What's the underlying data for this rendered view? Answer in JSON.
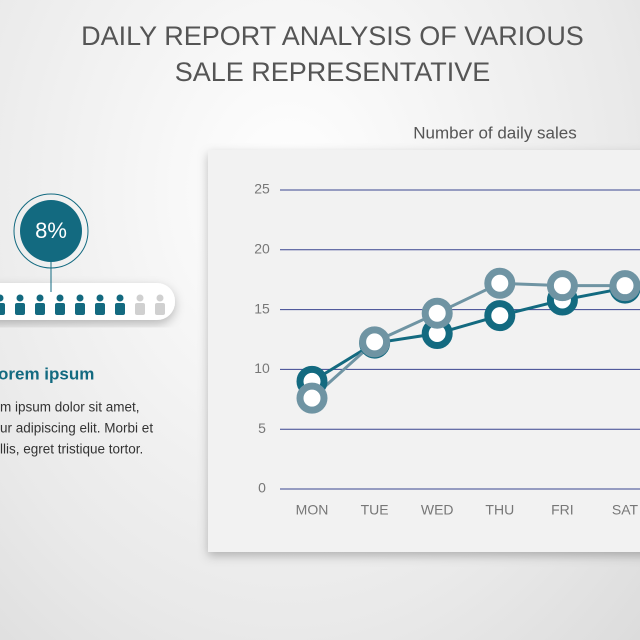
{
  "title": "DAILY REPORT ANALYSIS OF VARIOUS SALE REPRESENTATIVE",
  "infographic": {
    "percent": "8%",
    "heading": "orem ipsum",
    "body": [
      "m ipsum dolor sit amet,",
      "ur adipiscing elit. Morbi et",
      "llis, egret tristique tortor."
    ]
  },
  "chart_data": {
    "type": "line",
    "title": "Number of daily sales",
    "categories": [
      "MON",
      "TUE",
      "WED",
      "THU",
      "FRI",
      "SAT"
    ],
    "series": [
      {
        "color": "#136a80",
        "values": [
          9,
          12.2,
          13,
          14.5,
          15.8,
          16.8
        ]
      },
      {
        "color": "#6f94a3",
        "values": [
          7.6,
          12.3,
          14.7,
          17.2,
          17,
          17
        ]
      }
    ],
    "ylim": [
      0,
      25
    ],
    "yticks": [
      0,
      5,
      10,
      15,
      20,
      25
    ],
    "grid": true
  }
}
